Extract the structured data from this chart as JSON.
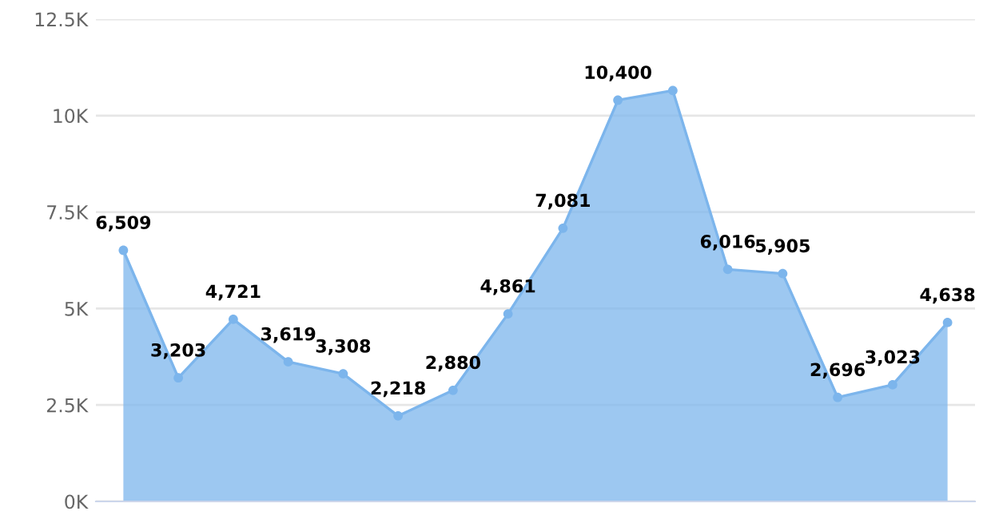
{
  "chart_data": {
    "type": "area",
    "categories": [
      null,
      null,
      null,
      null,
      null,
      null,
      null,
      null,
      null,
      null,
      null,
      null,
      null,
      null,
      null,
      null
    ],
    "series": [
      {
        "color": "#7cb5ec",
        "values": [
          6509,
          3203,
          4721,
          3619,
          3308,
          2218,
          2880,
          4861,
          7081,
          10400,
          10650,
          6016,
          5905,
          2696,
          3023,
          4638
        ],
        "value_labels": [
          "6,509",
          "3,203",
          "4,721",
          "3,619",
          "3,308",
          "2,218",
          "2,880",
          "4,861",
          "7,081",
          "10,400",
          null,
          "6,016",
          "5,905",
          "2,696",
          "3,023",
          "4,638"
        ]
      }
    ],
    "ylim": [
      0,
      12500
    ],
    "yticks": [
      {
        "value": 0,
        "label": "0K"
      },
      {
        "value": 2500,
        "label": "2.5K"
      },
      {
        "value": 5000,
        "label": "5K"
      },
      {
        "value": 7500,
        "label": "7.5K"
      },
      {
        "value": 10000,
        "label": "10K"
      },
      {
        "value": 12500,
        "label": "12.5K"
      }
    ],
    "grid": "y",
    "marker": "circle",
    "tick_labels": "y"
  }
}
